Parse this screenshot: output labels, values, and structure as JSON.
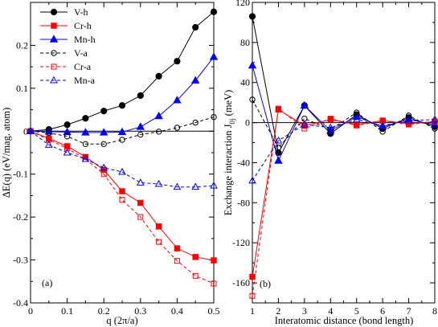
{
  "chart_data": [
    {
      "type": "line",
      "panel_label": "(a)",
      "xlabel": "q (2π/a)",
      "ylabel": "ΔE(q) (eV/mag. atom)",
      "xlim": [
        0,
        0.5
      ],
      "ylim": [
        -0.4,
        0.3
      ],
      "xticks": [
        0,
        0.1,
        0.2,
        0.3,
        0.4,
        0.5
      ],
      "xtick_labels": [
        "0",
        "0.1",
        "0.2",
        "0.3",
        "0.4",
        "0.5"
      ],
      "yticks": [
        -0.4,
        -0.3,
        -0.2,
        -0.1,
        0,
        0.1,
        0.2
      ],
      "ytick_labels": [
        "-0.4",
        "-0.3",
        "-0.2",
        "-0.1",
        "0",
        "0.1",
        "0.2"
      ],
      "zero_line": true,
      "legend_position": "top-left",
      "series": [
        {
          "name": "V-h",
          "color": "#000000",
          "marker": "filled-circle",
          "dash": "solid",
          "x": [
            0,
            0.05,
            0.1,
            0.15,
            0.2,
            0.25,
            0.3,
            0.35,
            0.4,
            0.45,
            0.5
          ],
          "y": [
            0,
            0.004,
            0.015,
            0.03,
            0.047,
            0.06,
            0.083,
            0.128,
            0.163,
            0.242,
            0.278
          ]
        },
        {
          "name": "Cr-h",
          "color": "#ff0000",
          "marker": "filled-square",
          "dash": "solid",
          "x": [
            0,
            0.05,
            0.1,
            0.15,
            0.2,
            0.25,
            0.3,
            0.35,
            0.4,
            0.45,
            0.5
          ],
          "y": [
            0,
            -0.017,
            -0.035,
            -0.06,
            -0.09,
            -0.14,
            -0.167,
            -0.222,
            -0.273,
            -0.293,
            -0.301
          ]
        },
        {
          "name": "Mn-h",
          "color": "#0000ff",
          "marker": "filled-triangle",
          "dash": "solid",
          "x": [
            0,
            0.05,
            0.1,
            0.15,
            0.2,
            0.25,
            0.3,
            0.35,
            0.4,
            0.45,
            0.5
          ],
          "y": [
            0,
            -0.001,
            -0.002,
            -0.003,
            -0.003,
            -0.002,
            0.01,
            0.035,
            0.072,
            0.118,
            0.173
          ]
        },
        {
          "name": "V-a",
          "color": "#000000",
          "marker": "open-circle",
          "dash": "dashed",
          "x": [
            0,
            0.05,
            0.1,
            0.15,
            0.2,
            0.25,
            0.3,
            0.35,
            0.4,
            0.45,
            0.5
          ],
          "y": [
            0,
            -0.004,
            -0.012,
            -0.03,
            -0.03,
            -0.02,
            -0.008,
            -0.001,
            0.008,
            0.02,
            0.033
          ]
        },
        {
          "name": "Cr-a",
          "color": "#ff0000",
          "marker": "open-square",
          "dash": "dashed",
          "x": [
            0,
            0.05,
            0.1,
            0.15,
            0.2,
            0.25,
            0.3,
            0.35,
            0.4,
            0.45,
            0.5
          ],
          "y": [
            0,
            -0.02,
            -0.04,
            -0.065,
            -0.1,
            -0.16,
            -0.2,
            -0.258,
            -0.302,
            -0.337,
            -0.355
          ]
        },
        {
          "name": "Mn-a",
          "color": "#0000ff",
          "marker": "open-triangle",
          "dash": "dashed",
          "x": [
            0,
            0.05,
            0.1,
            0.15,
            0.2,
            0.25,
            0.3,
            0.35,
            0.4,
            0.45,
            0.5
          ],
          "y": [
            0,
            -0.032,
            -0.05,
            -0.065,
            -0.085,
            -0.095,
            -0.12,
            -0.123,
            -0.13,
            -0.13,
            -0.127
          ]
        }
      ]
    },
    {
      "type": "line",
      "panel_label": "(b)",
      "xlabel": "Interatomic distance (bond length)",
      "ylabel": "Exchange interaction J",
      "ylabel_subscript": "0j",
      "ylabel_unit": " (meV)",
      "xlim": [
        1,
        8
      ],
      "ylim": [
        -180,
        120
      ],
      "xticks": [
        1,
        2,
        3,
        4,
        5,
        6,
        7,
        8
      ],
      "xtick_labels": [
        "1",
        "2",
        "3",
        "4",
        "5",
        "6",
        "7",
        "8"
      ],
      "yticks": [
        -160,
        -120,
        -80,
        -40,
        0,
        40,
        80,
        120
      ],
      "ytick_labels": [
        "-160",
        "-120",
        "-80",
        "-40",
        "0",
        "40",
        "80",
        "120"
      ],
      "zero_line": true,
      "series": [
        {
          "name": "V-h",
          "color": "#000000",
          "marker": "filled-circle",
          "dash": "solid",
          "x": [
            1,
            2,
            3,
            4,
            5,
            6,
            7,
            8
          ],
          "y": [
            106,
            -30,
            17,
            -11,
            8,
            -6,
            5,
            -4
          ]
        },
        {
          "name": "Cr-h",
          "color": "#ff0000",
          "marker": "filled-square",
          "dash": "solid",
          "x": [
            1,
            2,
            3,
            4,
            5,
            6,
            7,
            8
          ],
          "y": [
            -154,
            13,
            -3,
            3,
            -2,
            2,
            -1,
            1
          ]
        },
        {
          "name": "Mn-h",
          "color": "#0000ff",
          "marker": "filled-triangle",
          "dash": "solid",
          "x": [
            1,
            2,
            3,
            4,
            5,
            6,
            7,
            8
          ],
          "y": [
            57,
            -38,
            17,
            -8,
            6,
            -4,
            3,
            -2
          ]
        },
        {
          "name": "V-a",
          "color": "#000000",
          "marker": "open-circle",
          "dash": "dashed",
          "x": [
            1,
            2,
            3,
            4,
            5,
            6,
            7,
            8
          ],
          "y": [
            23,
            -25,
            4,
            -7,
            10,
            -9,
            7,
            -6
          ]
        },
        {
          "name": "Cr-a",
          "color": "#ff0000",
          "marker": "open-square",
          "dash": "dashed",
          "x": [
            1,
            2,
            3,
            4,
            5,
            6,
            7,
            8
          ],
          "y": [
            -173,
            14,
            -6,
            4,
            -3,
            2,
            -2,
            1
          ]
        },
        {
          "name": "Mn-a",
          "color": "#0000ff",
          "marker": "open-triangle",
          "dash": "dashed",
          "x": [
            1,
            2,
            3,
            4,
            5,
            6,
            7,
            8
          ],
          "y": [
            -58,
            -18,
            -2,
            -5,
            3,
            -3,
            2,
            3
          ]
        }
      ]
    }
  ]
}
